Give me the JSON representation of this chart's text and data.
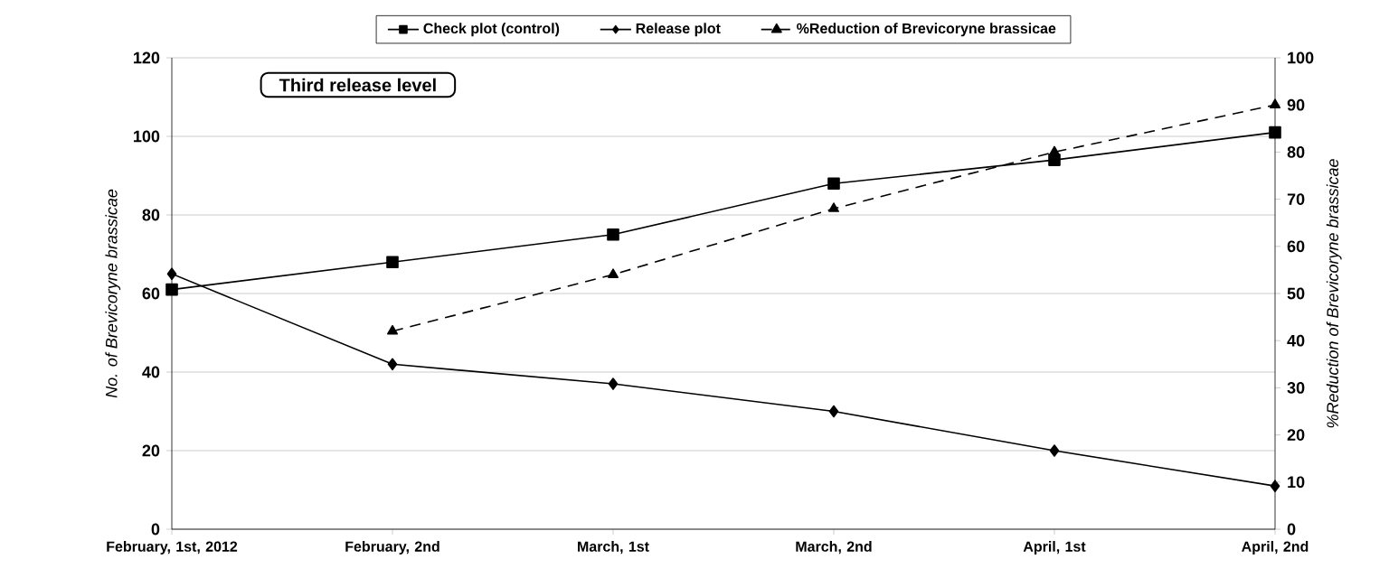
{
  "chart_data": {
    "type": "line",
    "ylabel": "No. of Brevicoryne brassicae",
    "y2label": "%Reduction of Brevicoryne brassicae",
    "annotations": [
      "Third release level"
    ],
    "categories": [
      "February, 1st, 2012",
      "February, 2nd",
      "March, 1st",
      "March, 2nd",
      "April, 1st",
      "April, 2nd"
    ],
    "ylim": [
      0,
      120
    ],
    "yticks": [
      0,
      20,
      40,
      60,
      80,
      100,
      120
    ],
    "y2lim": [
      0,
      100
    ],
    "y2ticks": [
      0,
      10,
      20,
      30,
      40,
      50,
      60,
      70,
      80,
      90,
      100
    ],
    "grid": "y",
    "legend": "top",
    "series": [
      {
        "name": "Check plot (control)",
        "color": "#000000",
        "marker": "square",
        "line_style": "solid",
        "values": [
          61,
          68,
          75,
          88,
          94,
          101
        ]
      },
      {
        "name": "Release plot",
        "color": "#000000",
        "marker": "diamond",
        "line_style": "solid",
        "values": [
          65,
          42,
          37,
          30,
          20,
          11
        ]
      },
      {
        "name": "%Reduction of Brevicoryne brassicae",
        "color": "#000000",
        "marker": "triangle",
        "line_style": "dashed",
        "axis": "y2",
        "values": [
          null,
          42,
          54,
          68,
          80,
          90
        ]
      }
    ]
  }
}
